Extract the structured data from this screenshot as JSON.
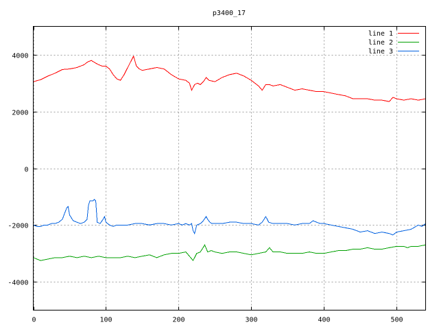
{
  "chart_data": {
    "type": "line",
    "title": "p3400_17",
    "xlabel": "",
    "ylabel": "",
    "xlim": [
      0,
      540
    ],
    "ylim": [
      -5000,
      5000
    ],
    "x_ticks": [
      0,
      100,
      200,
      300,
      400,
      500
    ],
    "y_ticks": [
      -4000,
      -2000,
      0,
      2000,
      4000
    ],
    "grid": true,
    "legend_position": "top-right",
    "series": [
      {
        "name": "line 1",
        "color": "#ff0000",
        "x": [
          0,
          10,
          20,
          30,
          40,
          50,
          60,
          70,
          75,
          80,
          85,
          90,
          95,
          100,
          105,
          110,
          115,
          120,
          125,
          130,
          135,
          138,
          142,
          146,
          150,
          160,
          170,
          180,
          190,
          200,
          210,
          215,
          218,
          222,
          226,
          230,
          234,
          238,
          242,
          250,
          260,
          270,
          280,
          290,
          300,
          310,
          315,
          320,
          325,
          330,
          340,
          350,
          360,
          370,
          380,
          390,
          400,
          410,
          420,
          430,
          440,
          450,
          460,
          470,
          480,
          490,
          495,
          500,
          510,
          520,
          530,
          540
        ],
        "y": [
          3050,
          3120,
          3250,
          3350,
          3480,
          3500,
          3550,
          3650,
          3750,
          3800,
          3720,
          3650,
          3600,
          3600,
          3500,
          3300,
          3150,
          3100,
          3300,
          3550,
          3800,
          3950,
          3600,
          3500,
          3450,
          3500,
          3550,
          3500,
          3300,
          3150,
          3100,
          3000,
          2750,
          2950,
          3000,
          2950,
          3050,
          3200,
          3100,
          3050,
          3200,
          3300,
          3350,
          3250,
          3100,
          2900,
          2750,
          2950,
          2950,
          2900,
          2950,
          2850,
          2750,
          2800,
          2750,
          2700,
          2700,
          2650,
          2600,
          2550,
          2450,
          2450,
          2450,
          2400,
          2400,
          2350,
          2500,
          2450,
          2400,
          2450,
          2400,
          2450
        ]
      },
      {
        "name": "line 2",
        "color": "#00a000",
        "x": [
          0,
          10,
          20,
          30,
          40,
          50,
          60,
          70,
          80,
          90,
          100,
          110,
          120,
          130,
          140,
          150,
          160,
          170,
          180,
          190,
          200,
          210,
          215,
          220,
          225,
          230,
          236,
          240,
          245,
          250,
          260,
          270,
          280,
          290,
          300,
          310,
          320,
          325,
          330,
          340,
          350,
          360,
          370,
          380,
          390,
          400,
          410,
          420,
          430,
          440,
          450,
          460,
          470,
          480,
          490,
          500,
          510,
          515,
          520,
          530,
          540
        ],
        "y": [
          -3150,
          -3250,
          -3200,
          -3150,
          -3150,
          -3100,
          -3150,
          -3100,
          -3150,
          -3100,
          -3150,
          -3150,
          -3150,
          -3100,
          -3150,
          -3100,
          -3050,
          -3150,
          -3050,
          -3000,
          -3000,
          -2950,
          -3100,
          -3250,
          -3000,
          -2950,
          -2700,
          -2950,
          -2900,
          -2950,
          -3000,
          -2950,
          -2950,
          -3000,
          -3050,
          -3000,
          -2950,
          -2800,
          -2950,
          -2950,
          -3000,
          -3000,
          -3000,
          -2950,
          -3000,
          -3000,
          -2950,
          -2900,
          -2900,
          -2850,
          -2850,
          -2800,
          -2850,
          -2850,
          -2800,
          -2750,
          -2750,
          -2800,
          -2750,
          -2750,
          -2700
        ]
      },
      {
        "name": "line 3",
        "color": "#0060e0",
        "x": [
          0,
          5,
          10,
          15,
          20,
          25,
          30,
          35,
          40,
          43,
          46,
          48,
          50,
          55,
          60,
          65,
          70,
          74,
          76,
          78,
          80,
          82,
          84,
          86,
          88,
          92,
          96,
          98,
          100,
          105,
          110,
          115,
          120,
          130,
          140,
          150,
          160,
          170,
          180,
          190,
          200,
          205,
          210,
          215,
          218,
          220,
          222,
          225,
          230,
          234,
          238,
          240,
          243,
          246,
          250,
          260,
          270,
          280,
          290,
          300,
          310,
          315,
          320,
          322,
          324,
          330,
          340,
          350,
          360,
          370,
          380,
          385,
          390,
          395,
          400,
          410,
          420,
          430,
          440,
          450,
          460,
          470,
          480,
          490,
          495,
          500,
          510,
          520,
          530,
          535,
          540
        ],
        "y": [
          -2000,
          -2050,
          -2050,
          -2000,
          -2000,
          -1950,
          -1950,
          -1900,
          -1800,
          -1600,
          -1400,
          -1350,
          -1650,
          -1850,
          -1900,
          -1950,
          -1900,
          -1800,
          -1300,
          -1150,
          -1150,
          -1150,
          -1100,
          -1150,
          -1900,
          -1950,
          -1800,
          -1700,
          -1900,
          -2000,
          -2050,
          -2000,
          -2000,
          -2000,
          -1950,
          -1950,
          -2000,
          -1950,
          -1950,
          -2000,
          -1950,
          -2000,
          -1950,
          -2000,
          -1950,
          -2200,
          -2300,
          -2000,
          -1950,
          -1850,
          -1700,
          -1800,
          -1900,
          -1950,
          -1950,
          -1950,
          -1900,
          -1900,
          -1950,
          -1950,
          -2000,
          -1900,
          -1700,
          -1800,
          -1900,
          -1950,
          -1950,
          -1950,
          -2000,
          -1950,
          -1950,
          -1850,
          -1900,
          -1950,
          -1950,
          -2000,
          -2050,
          -2100,
          -2150,
          -2250,
          -2200,
          -2300,
          -2250,
          -2300,
          -2350,
          -2250,
          -2200,
          -2150,
          -2000,
          -2050,
          -1950
        ]
      }
    ]
  }
}
